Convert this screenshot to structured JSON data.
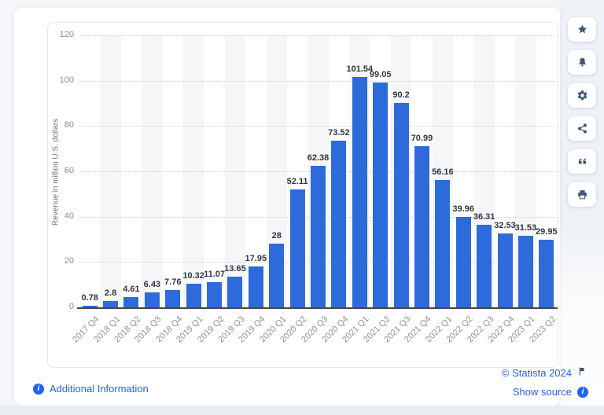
{
  "chart_data": {
    "type": "bar",
    "title": "",
    "categories": [
      "2017 Q4",
      "2018 Q1",
      "2018 Q2",
      "2018 Q3",
      "2018 Q4",
      "2019 Q1",
      "2019 Q2",
      "2019 Q3",
      "2019 Q4",
      "2020 Q1",
      "2020 Q2",
      "2020 Q3",
      "2020 Q4",
      "2021 Q1",
      "2021 Q2",
      "2021 Q3",
      "2021 Q4",
      "2022 Q1",
      "2022 Q2",
      "2022 Q3",
      "2022 Q4",
      "2023 Q1",
      "2023 Q2"
    ],
    "values": [
      0.78,
      2.8,
      4.61,
      6.43,
      7.76,
      10.32,
      11.07,
      13.65,
      17.95,
      28,
      52.11,
      62.38,
      73.52,
      101.54,
      99.05,
      90.2,
      70.99,
      56.16,
      39.96,
      36.31,
      32.53,
      31.53,
      29.95
    ],
    "value_labels": [
      "0.78",
      "2.8",
      "4.61",
      "6.43",
      "7.76",
      "10.32",
      "11.07",
      "13.65",
      "17.95",
      "28",
      "52.11",
      "62.38",
      "73.52",
      "101.54",
      "99.05",
      "90.2",
      "70.99",
      "56.16",
      "39.96",
      "36.31",
      "32.53",
      "31.53",
      "29.95"
    ],
    "xlabel": "",
    "ylabel": "Revenue in million U.S. dollars",
    "y_ticks": [
      0,
      20,
      40,
      60,
      80,
      100,
      120
    ],
    "ylim": [
      0,
      120
    ],
    "grid": "horizontal-dotted",
    "legend": "none",
    "bar_color": "#2d6bdb",
    "stripe_color": "#f5f6f8"
  },
  "toolbar": {
    "buttons": [
      {
        "name": "favorite",
        "icon": "star-icon"
      },
      {
        "name": "notifications",
        "icon": "bell-icon"
      },
      {
        "name": "settings",
        "icon": "gear-icon"
      },
      {
        "name": "share",
        "icon": "share-icon"
      },
      {
        "name": "cite",
        "icon": "quote-icon"
      },
      {
        "name": "print",
        "icon": "printer-icon"
      }
    ]
  },
  "footer": {
    "additional_information": "Additional Information",
    "copyright": "© Statista 2024",
    "show_source": "Show source"
  },
  "colors": {
    "bar": "#2d6bdb",
    "link": "#2563eb",
    "icon": "#3d5677",
    "axis_line": "#43474d",
    "tick_label": "#8d9298",
    "stripe": "#f5f6f8",
    "sidebar_bg": "#eef1f5",
    "bottom_strip": "#e9edf1"
  }
}
